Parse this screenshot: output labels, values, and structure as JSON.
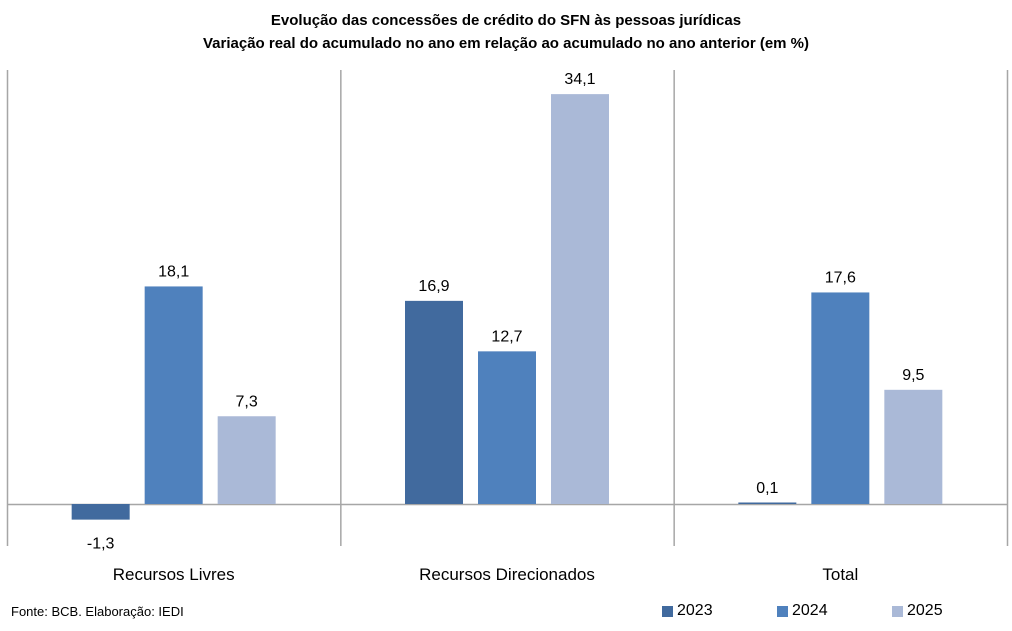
{
  "chart_data": {
    "type": "bar",
    "title": "Evolução das concessões de crédito do SFN às pessoas jurídicas",
    "subtitle": "Variação real do acumulado no ano em relação ao acumulado no ano anterior (em %)",
    "xlabel": "",
    "ylabel": "",
    "categories": [
      "Recursos Livres",
      "Recursos Direcionados",
      "Total"
    ],
    "series": [
      {
        "name": "2023",
        "color": "#416A9E",
        "values": [
          -1.3,
          16.9,
          0.1
        ],
        "labels": [
          "-1,3",
          "16,9",
          "0,1"
        ]
      },
      {
        "name": "2024",
        "color": "#4F81BD",
        "values": [
          18.1,
          12.7,
          17.6
        ],
        "labels": [
          "18,1",
          "12,7",
          "17,6"
        ]
      },
      {
        "name": "2025",
        "color": "#AAB9D7",
        "values": [
          7.3,
          34.1,
          9.5
        ],
        "labels": [
          "7,3",
          "34,1",
          "9,5"
        ]
      }
    ],
    "ylim": [
      -3.5,
      36.1
    ],
    "grid": false,
    "legend": "bottom-right",
    "source": "Fonte: BCB. Elaboração: IEDI"
  }
}
